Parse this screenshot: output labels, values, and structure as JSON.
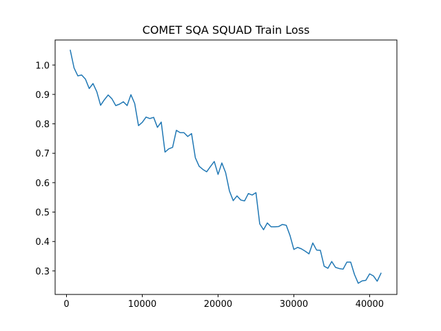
{
  "chart_data": {
    "type": "line",
    "title": "COMET SQA SQUAD Train Loss",
    "xlabel": "",
    "ylabel": "",
    "xlim": [
      -1500,
      43600
    ],
    "ylim": [
      0.22,
      1.085
    ],
    "xticks": [
      0,
      10000,
      20000,
      30000,
      40000
    ],
    "xtick_labels": [
      "0",
      "10000",
      "20000",
      "30000",
      "40000"
    ],
    "yticks": [
      0.3,
      0.4,
      0.5,
      0.6,
      0.7,
      0.8,
      0.9,
      1.0
    ],
    "ytick_labels": [
      "0.3",
      "0.4",
      "0.5",
      "0.6",
      "0.7",
      "0.8",
      "0.9",
      "1.0"
    ],
    "grid": false,
    "line_color": "#1f77b4",
    "series": [
      {
        "x": [
          500,
          1000,
          1500,
          2000,
          2500,
          3000,
          3500,
          4000,
          4500,
          5000,
          5500,
          6000,
          6500,
          7000,
          7500,
          8000,
          8500,
          9000,
          9500,
          10000,
          10500,
          11000,
          11500,
          12000,
          12500,
          13000,
          13500,
          14000,
          14500,
          15000,
          15500,
          16000,
          16500,
          17000,
          17500,
          18000,
          18500,
          19000,
          19500,
          20000,
          20500,
          21000,
          21500,
          22000,
          22500,
          23000,
          23500,
          24000,
          24500,
          25000,
          25500,
          26000,
          26500,
          27000,
          27500,
          28000,
          28500,
          29000,
          29500,
          30000,
          30500,
          31000,
          31500,
          32000,
          32500,
          33000,
          33500,
          34000,
          34500,
          35000,
          35500,
          36000,
          36500,
          37000,
          37500,
          38000,
          38500,
          39000,
          39500,
          40000,
          40500,
          41000,
          41500
        ],
        "y": [
          1.05,
          0.99,
          0.963,
          0.966,
          0.952,
          0.92,
          0.937,
          0.909,
          0.863,
          0.882,
          0.898,
          0.885,
          0.862,
          0.867,
          0.875,
          0.862,
          0.899,
          0.869,
          0.794,
          0.805,
          0.823,
          0.818,
          0.822,
          0.788,
          0.806,
          0.704,
          0.715,
          0.72,
          0.778,
          0.77,
          0.77,
          0.757,
          0.767,
          0.685,
          0.656,
          0.645,
          0.637,
          0.655,
          0.672,
          0.628,
          0.667,
          0.634,
          0.572,
          0.539,
          0.555,
          0.541,
          0.538,
          0.563,
          0.558,
          0.566,
          0.46,
          0.44,
          0.463,
          0.45,
          0.45,
          0.451,
          0.458,
          0.455,
          0.42,
          0.373,
          0.38,
          0.375,
          0.367,
          0.358,
          0.395,
          0.371,
          0.37,
          0.316,
          0.309,
          0.332,
          0.312,
          0.308,
          0.306,
          0.33,
          0.33,
          0.288,
          0.258,
          0.266,
          0.268,
          0.29,
          0.283,
          0.265,
          0.292
        ]
      }
    ]
  }
}
